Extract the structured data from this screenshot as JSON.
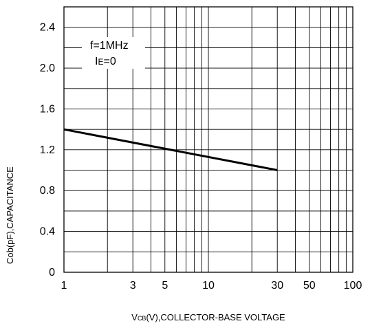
{
  "chart_data": {
    "type": "line",
    "title": "",
    "xlabel_prefix": "V",
    "xlabel_sub": "CB",
    "xlabel_suffix": "(V),COLLECTOR-BASE VOLTAGE",
    "ylabel": "Cob(pF),CAPACITANCE",
    "xscale": "log",
    "xlim": [
      1,
      100
    ],
    "ylim": [
      0,
      2.6
    ],
    "grid": true,
    "xticks": [
      1,
      3,
      5,
      10,
      30,
      50,
      100
    ],
    "yticks": [
      0,
      0.4,
      0.8,
      1.2,
      1.6,
      2.0,
      2.4
    ],
    "ytick_labels": [
      "0",
      "0.4",
      "0.8",
      "1.2",
      "1.6",
      "2.0",
      "2.4"
    ],
    "x_grid": [
      1,
      2,
      3,
      4,
      5,
      6,
      7,
      8,
      9,
      10,
      20,
      30,
      40,
      50,
      60,
      70,
      80,
      90,
      100
    ],
    "y_grid": [
      0,
      0.2,
      0.4,
      0.6,
      0.8,
      1.0,
      1.2,
      1.4,
      1.6,
      1.8,
      2.0,
      2.2,
      2.4,
      2.6
    ],
    "series": [
      {
        "x": [
          1,
          30
        ],
        "y": [
          1.4,
          1.0
        ]
      }
    ],
    "annotations": {
      "freq": "f=1MHz",
      "ie_prefix": "I",
      "ie_sub": "E",
      "ie_suffix": "=0"
    }
  }
}
